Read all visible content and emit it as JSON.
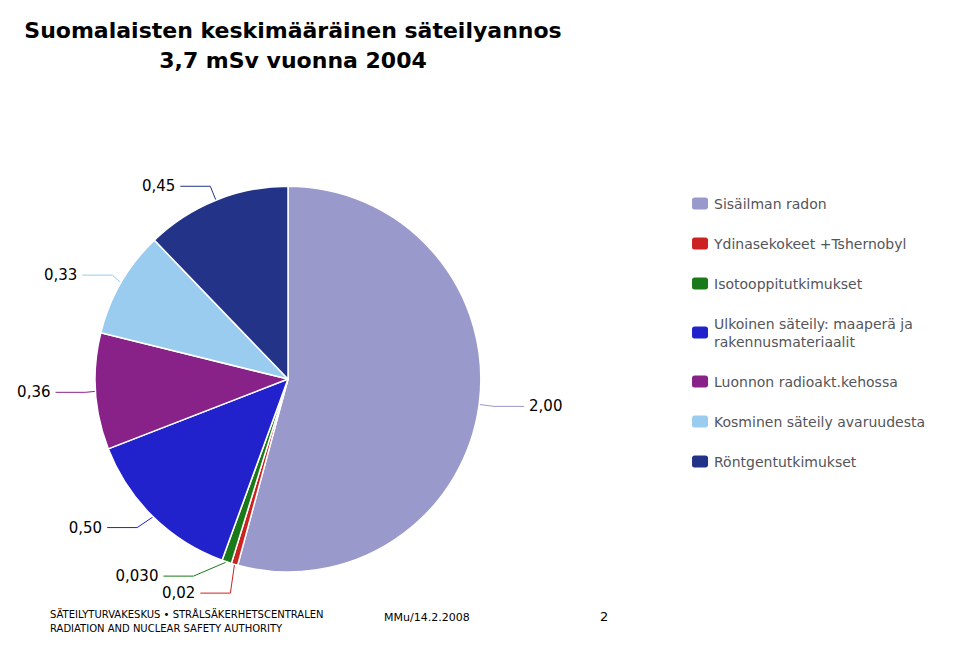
{
  "chart_data": {
    "type": "pie",
    "title": "Suomalaisten keskimääräinen säteilyannos",
    "subtitle": "3,7 mSv vuonna 2004",
    "categories": [
      "Sisäilman radon",
      "Ydinasekokeet +Tshernobyl",
      "Isotooppitutkimukset",
      "Ulkoinen säteily: maaperä ja\nrakennusmateriaalit",
      "Luonnon radioakt.kehossa",
      "Kosminen säteily avaruudesta",
      "Röntgentutkimukset"
    ],
    "values": [
      2.0,
      0.02,
      0.03,
      0.5,
      0.36,
      0.33,
      0.45
    ],
    "value_labels": [
      "2,00",
      "0,02",
      "0,030",
      "0,50",
      "0,36",
      "0,33",
      "0,45"
    ],
    "colors": [
      "#9999cc",
      "#cc2222",
      "#1a7a1a",
      "#2222cc",
      "#882288",
      "#99ccee",
      "#223388"
    ],
    "data_labels": true,
    "legend": "right",
    "annotations": [
      "SÄTEILYTURVAKESKUS • STRÅLSÄKERHETSCENTRALEN\nRADIATION AND NUCLEAR SAFETY AUTHORITY",
      "MMu/14.2.2008",
      "2"
    ]
  }
}
